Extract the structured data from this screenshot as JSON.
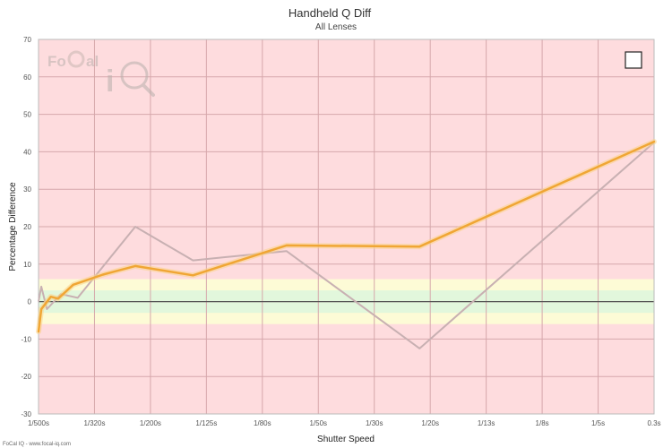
{
  "chart_data": {
    "type": "line",
    "title": "Handheld Q Diff",
    "subtitle": "All Lenses",
    "xlabel": "Shutter Speed",
    "ylabel": "Percentage Difference",
    "x_ticks": [
      "1/500s",
      "1/320s",
      "1/200s",
      "1/125s",
      "1/80s",
      "1/50s",
      "1/30s",
      "1/20s",
      "1/13s",
      "1/8s",
      "1/5s",
      "0.3s"
    ],
    "ylim": [
      -30,
      70
    ],
    "y_ticks": [
      -30,
      -20,
      -10,
      0,
      10,
      20,
      30,
      40,
      50,
      60,
      70
    ],
    "bands": [
      {
        "from": -6,
        "to": 6,
        "color": "#fdfbd6"
      },
      {
        "from": -3,
        "to": 3,
        "color": "#e2f7dc"
      }
    ],
    "background_color": "#fedcde",
    "series": [
      {
        "color": "#c8b0b2",
        "x": [
          0.0,
          0.05,
          0.15,
          0.4,
          0.7,
          1.73,
          2.76,
          4.43,
          6.81,
          11.0
        ],
        "y": [
          0,
          4,
          -2,
          2,
          1,
          20,
          11,
          13.5,
          -12.5,
          42.5
        ]
      },
      {
        "color": "#f0a634",
        "x": [
          0.0,
          0.05,
          0.22,
          0.35,
          0.62,
          1.15,
          1.73,
          2.76,
          4.43,
          6.81,
          11.0
        ],
        "y": [
          -8,
          -2,
          1.3,
          0.8,
          4.5,
          7.2,
          9.5,
          7,
          15,
          14.7,
          42.7
        ]
      }
    ],
    "legend_checkbox": "",
    "footer": "FoCal IQ - www.focal-iq.com",
    "logo": "FoCal iQ",
    "grid": true
  }
}
